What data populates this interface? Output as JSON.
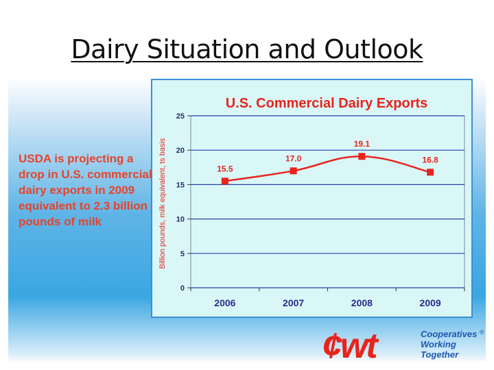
{
  "slide": {
    "title": "Dairy Situation and Outlook",
    "bullet_text": "USDA is projecting a drop in U.S. commercial dairy exports in 2009 equivalent to 2.3 billion pounds of milk"
  },
  "logo": {
    "mark": "¢wt",
    "line1": "Cooperatives",
    "line2": "Working",
    "line3": "Together",
    "registered": "®",
    "brand_red": "#e8241c",
    "brand_blue": "#1e56b4"
  },
  "chart_data": {
    "type": "line",
    "title": "U.S. Commercial Dairy Exports",
    "xlabel": "",
    "ylabel": "Billion pounds, milk equivalent, ts basis",
    "categories": [
      "2006",
      "2007",
      "2008",
      "2009"
    ],
    "series": [
      {
        "values": [
          15.5,
          17.0,
          19.1,
          16.8
        ],
        "labels": [
          "15.5",
          "17.0",
          "19.1",
          "16.8"
        ],
        "color": "#e8241c"
      }
    ],
    "ylim": [
      0,
      25
    ],
    "yticks": [
      "0",
      "5",
      "10",
      "15",
      "20",
      "25"
    ],
    "grid": true,
    "legend": "none"
  }
}
